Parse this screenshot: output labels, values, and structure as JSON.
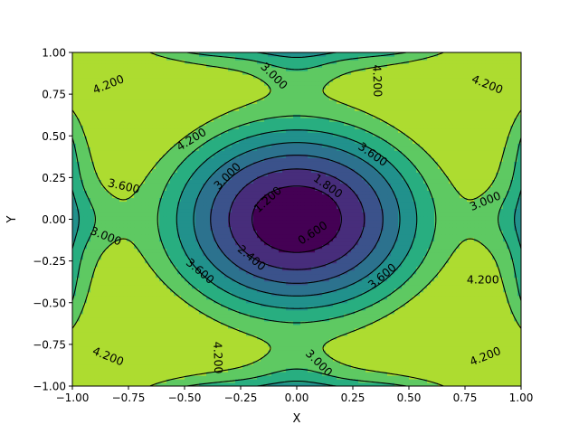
{
  "chart_data": {
    "type": "contour",
    "title": "",
    "xlabel": "X",
    "ylabel": "Y",
    "xlim": [
      -1.0,
      1.0
    ],
    "ylim": [
      -1.0,
      1.0
    ],
    "grid": false,
    "legend": "none",
    "x_ticks": [
      -1.0,
      -0.75,
      -0.5,
      -0.25,
      0.0,
      0.25,
      0.5,
      0.75,
      1.0
    ],
    "x_tick_labels": [
      "−1.00",
      "−0.75",
      "−0.50",
      "−0.25",
      "0.00",
      "0.25",
      "0.50",
      "0.75",
      "1.00"
    ],
    "y_ticks": [
      -1.0,
      -0.75,
      -0.5,
      -0.25,
      0.0,
      0.25,
      0.5,
      0.75,
      1.0
    ],
    "y_tick_labels": [
      "−1.00",
      "−0.75",
      "−0.50",
      "−0.25",
      "0.00",
      "0.25",
      "0.50",
      "0.75",
      "1.00"
    ],
    "fill_levels": [
      0.0,
      0.6,
      1.2,
      1.8,
      2.4,
      3.0,
      3.6,
      4.2,
      4.8
    ],
    "fill_colors": [
      "#440154",
      "#472d7b",
      "#3b528b",
      "#2c728e",
      "#21918c",
      "#28ae80",
      "#5ec962",
      "#addc30",
      "#dde318"
    ],
    "line_levels": [
      0.6,
      1.2,
      1.8,
      2.4,
      3.0,
      3.6,
      4.2
    ],
    "line_style": "dashed",
    "line_color": "#000000",
    "contour_labels": [
      {
        "text": "4.200",
        "x": -0.84,
        "y": 0.81,
        "angle": -22
      },
      {
        "text": "3.000",
        "x": -0.1,
        "y": 0.86,
        "angle": 45
      },
      {
        "text": "4.200",
        "x": 0.36,
        "y": 0.83,
        "angle": 88
      },
      {
        "text": "4.200",
        "x": 0.85,
        "y": 0.81,
        "angle": 22
      },
      {
        "text": "4.200",
        "x": -0.47,
        "y": 0.48,
        "angle": -32
      },
      {
        "text": "3.600",
        "x": 0.34,
        "y": 0.39,
        "angle": 35
      },
      {
        "text": "3.600",
        "x": -0.77,
        "y": 0.2,
        "angle": 13
      },
      {
        "text": "3.000",
        "x": -0.31,
        "y": 0.26,
        "angle": -45
      },
      {
        "text": "1.800",
        "x": 0.14,
        "y": 0.2,
        "angle": 35
      },
      {
        "text": "1.200",
        "x": -0.13,
        "y": 0.12,
        "angle": -42
      },
      {
        "text": "3.000",
        "x": 0.84,
        "y": 0.11,
        "angle": -22
      },
      {
        "text": "3.000",
        "x": -0.85,
        "y": -0.1,
        "angle": 22
      },
      {
        "text": "0.600",
        "x": 0.07,
        "y": -0.08,
        "angle": -33
      },
      {
        "text": "2.400",
        "x": -0.2,
        "y": -0.23,
        "angle": 40
      },
      {
        "text": "3.600",
        "x": -0.43,
        "y": -0.31,
        "angle": 40
      },
      {
        "text": "3.600",
        "x": 0.38,
        "y": -0.34,
        "angle": -40
      },
      {
        "text": "4.200",
        "x": 0.83,
        "y": -0.36,
        "angle": 0
      },
      {
        "text": "4.200",
        "x": -0.84,
        "y": -0.82,
        "angle": 22
      },
      {
        "text": "4.200",
        "x": -0.35,
        "y": -0.83,
        "angle": 88
      },
      {
        "text": "3.000",
        "x": 0.1,
        "y": -0.86,
        "angle": 45
      },
      {
        "text": "4.200",
        "x": 0.84,
        "y": -0.82,
        "angle": -22
      }
    ]
  }
}
